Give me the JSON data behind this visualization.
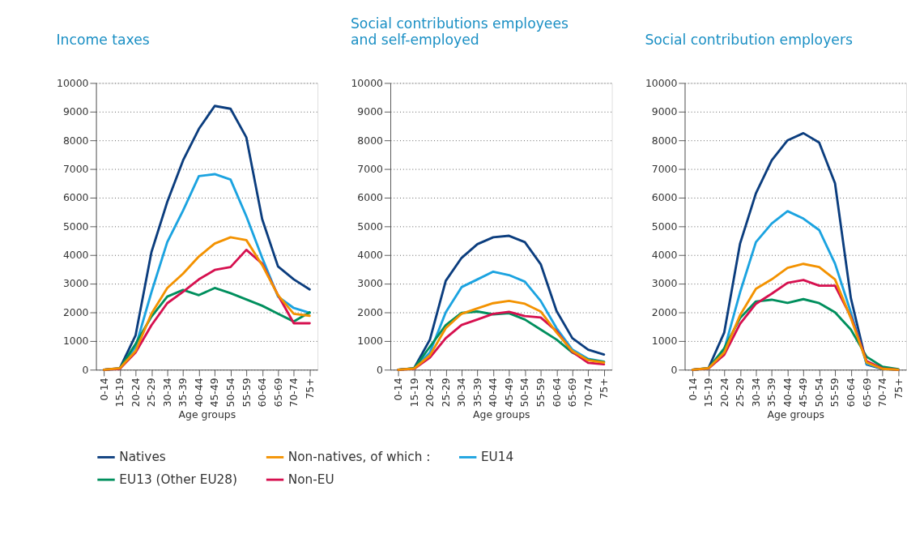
{
  "chart_data": [
    {
      "type": "line",
      "title": "Income taxes",
      "xlabel": "Age groups",
      "categories": [
        "0-14",
        "15-19",
        "20-24",
        "25-29",
        "30-34",
        "35-39",
        "40-44",
        "45-49",
        "50-54",
        "55-59",
        "60-64",
        "65-69",
        "70-74",
        "75+"
      ],
      "ylim": [
        0,
        10000
      ],
      "yticks": [
        0,
        1000,
        2000,
        3000,
        4000,
        5000,
        6000,
        7000,
        8000,
        9000,
        10000
      ],
      "grid": "y",
      "legend": "bottom",
      "marker": "none",
      "line_style": "solid",
      "series": [
        {
          "name": "Natives",
          "color": "#0b3d7e",
          "values": [
            0,
            50,
            1200,
            4100,
            5850,
            7300,
            8400,
            9200,
            9100,
            8100,
            5250,
            3600,
            3150,
            2800
          ]
        },
        {
          "name": "Non-natives, of which :",
          "color": "#f39200",
          "values": [
            0,
            50,
            650,
            1950,
            2850,
            3350,
            3950,
            4400,
            4620,
            4520,
            3650,
            2600,
            1950,
            1880
          ]
        },
        {
          "name": "EU14",
          "color": "#1ba3e0",
          "values": [
            0,
            30,
            800,
            2700,
            4450,
            5550,
            6750,
            6820,
            6630,
            5350,
            3900,
            2550,
            2150,
            1980
          ]
        },
        {
          "name": "EU13 (Other EU28)",
          "color": "#008f5d",
          "values": [
            0,
            40,
            900,
            1850,
            2550,
            2780,
            2600,
            2850,
            2670,
            2450,
            2230,
            1950,
            1680,
            2000
          ]
        },
        {
          "name": "Non-EU",
          "color": "#d6104f",
          "values": [
            0,
            30,
            600,
            1550,
            2320,
            2720,
            3150,
            3480,
            3580,
            4180,
            3700,
            2600,
            1620,
            1620
          ]
        }
      ]
    },
    {
      "type": "line",
      "title": "Social contributions employees\nand self-employed",
      "xlabel": "Age groups",
      "categories": [
        "0-14",
        "15-19",
        "20-24",
        "25-29",
        "30-34",
        "35-39",
        "40-44",
        "45-49",
        "50-54",
        "55-59",
        "60-64",
        "65-69",
        "70-74",
        "75+"
      ],
      "ylim": [
        0,
        10000
      ],
      "yticks": [
        0,
        1000,
        2000,
        3000,
        4000,
        5000,
        6000,
        7000,
        8000,
        9000,
        10000
      ],
      "grid": "y",
      "marker": "none",
      "line_style": "solid",
      "series": [
        {
          "color": "#0b3d7e",
          "values": [
            0,
            50,
            1050,
            3100,
            3900,
            4380,
            4620,
            4670,
            4450,
            3680,
            2050,
            1100,
            700,
            530
          ]
        },
        {
          "color": "#f39200",
          "values": [
            0,
            40,
            500,
            1450,
            1950,
            2140,
            2320,
            2400,
            2300,
            2030,
            1300,
            650,
            330,
            250
          ]
        },
        {
          "color": "#1ba3e0",
          "values": [
            0,
            40,
            600,
            2000,
            2880,
            3150,
            3420,
            3300,
            3070,
            2400,
            1450,
            700,
            380,
            280
          ]
        },
        {
          "color": "#008f5d",
          "values": [
            0,
            50,
            800,
            1550,
            1980,
            2030,
            1930,
            1970,
            1750,
            1400,
            1050,
            600,
            350,
            270
          ]
        },
        {
          "color": "#d6104f",
          "values": [
            0,
            30,
            420,
            1100,
            1560,
            1750,
            1950,
            2020,
            1870,
            1820,
            1350,
            620,
            240,
            190
          ]
        }
      ]
    },
    {
      "type": "line",
      "title": "Social contribution employers",
      "xlabel": "Age groups",
      "categories": [
        "0-14",
        "15-19",
        "20-24",
        "25-29",
        "30-34",
        "35-39",
        "40-44",
        "45-49",
        "50-54",
        "55-59",
        "60-64",
        "65-69",
        "70-74",
        "75+"
      ],
      "ylim": [
        0,
        10000
      ],
      "yticks": [
        0,
        1000,
        2000,
        3000,
        4000,
        5000,
        6000,
        7000,
        8000,
        9000,
        10000
      ],
      "grid": "y",
      "marker": "none",
      "line_style": "solid",
      "series": [
        {
          "color": "#0b3d7e",
          "values": [
            0,
            50,
            1300,
            4400,
            6150,
            7300,
            8000,
            8250,
            7920,
            6500,
            2500,
            180,
            30,
            0
          ]
        },
        {
          "color": "#f39200",
          "values": [
            0,
            50,
            600,
            1900,
            2820,
            3150,
            3550,
            3690,
            3580,
            3150,
            1800,
            250,
            30,
            0
          ]
        },
        {
          "color": "#1ba3e0",
          "values": [
            0,
            40,
            700,
            2700,
            4450,
            5100,
            5530,
            5270,
            4870,
            3700,
            2000,
            200,
            40,
            0
          ]
        },
        {
          "color": "#008f5d",
          "values": [
            0,
            50,
            750,
            1800,
            2380,
            2440,
            2330,
            2460,
            2320,
            2000,
            1400,
            450,
            100,
            20
          ]
        },
        {
          "color": "#d6104f",
          "values": [
            0,
            40,
            520,
            1600,
            2300,
            2650,
            3030,
            3130,
            2930,
            2930,
            1850,
            300,
            40,
            0
          ]
        }
      ]
    }
  ]
}
